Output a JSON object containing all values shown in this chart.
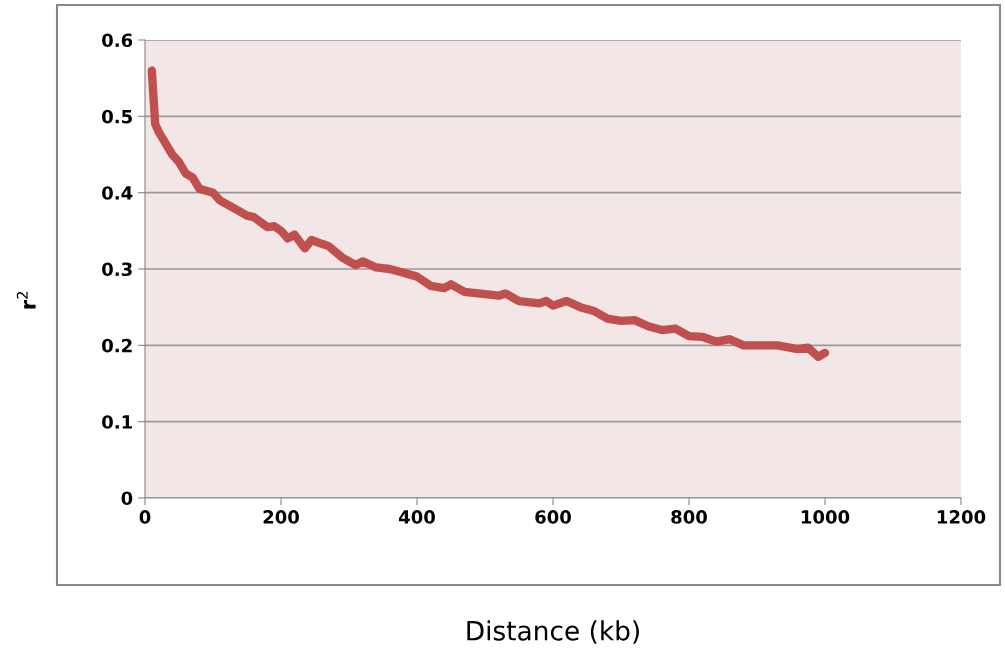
{
  "chart_data": {
    "type": "line",
    "xlabel": "Distance (kb)",
    "ylabel": "r$^{2}$",
    "x": [
      10,
      15,
      20,
      30,
      40,
      50,
      60,
      70,
      80,
      100,
      110,
      130,
      150,
      160,
      180,
      190,
      200,
      210,
      220,
      235,
      245,
      260,
      270,
      290,
      310,
      320,
      340,
      360,
      380,
      400,
      420,
      440,
      450,
      470,
      500,
      520,
      530,
      550,
      580,
      590,
      600,
      620,
      640,
      660,
      680,
      700,
      720,
      740,
      760,
      780,
      800,
      820,
      840,
      860,
      880,
      900,
      930,
      960,
      975,
      990,
      1000
    ],
    "series": [
      {
        "color": "#c0504d",
        "values": [
          0.56,
          0.49,
          0.48,
          0.465,
          0.45,
          0.44,
          0.425,
          0.42,
          0.405,
          0.4,
          0.39,
          0.38,
          0.37,
          0.368,
          0.355,
          0.356,
          0.35,
          0.34,
          0.345,
          0.327,
          0.338,
          0.333,
          0.33,
          0.315,
          0.305,
          0.31,
          0.302,
          0.3,
          0.295,
          0.29,
          0.278,
          0.275,
          0.28,
          0.27,
          0.267,
          0.265,
          0.268,
          0.258,
          0.255,
          0.258,
          0.252,
          0.258,
          0.25,
          0.245,
          0.235,
          0.232,
          0.233,
          0.225,
          0.22,
          0.222,
          0.212,
          0.211,
          0.205,
          0.208,
          0.2,
          0.2,
          0.2,
          0.195,
          0.197,
          0.185,
          0.19
        ]
      }
    ],
    "xlim": [
      0,
      1200
    ],
    "xticks": [
      0,
      200,
      400,
      600,
      800,
      1000,
      1200
    ],
    "ylim": [
      0,
      0.6
    ],
    "yticks": [
      0,
      0.1,
      0.2,
      0.3,
      0.4,
      0.5,
      0.6
    ],
    "grid": "y",
    "marker": "none",
    "line_style": "solid"
  }
}
